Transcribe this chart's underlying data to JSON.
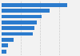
{
  "values": [
    85,
    62,
    52,
    46,
    43,
    41,
    16,
    8,
    6
  ],
  "bar_color": "#2b7bcd",
  "background_color": "#f2f2f2",
  "plot_background": "#f2f2f2",
  "xlim": [
    0,
    100
  ],
  "figsize": [
    1.0,
    0.71
  ],
  "dpi": 100,
  "bar_height": 0.65,
  "grid_ticks": [
    25,
    50,
    75,
    100
  ],
  "grid_color": "#cccccc",
  "grid_linestyle": "--"
}
